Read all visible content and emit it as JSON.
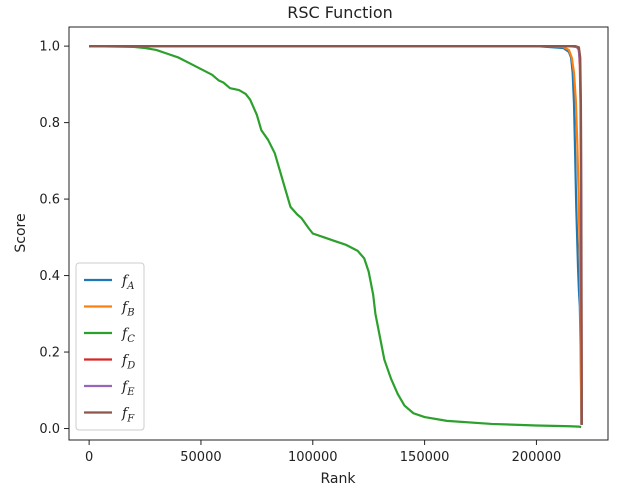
{
  "chart_data": {
    "type": "line",
    "title": "RSC Function",
    "xlabel": "Rank",
    "ylabel": "Score",
    "xlim": [
      -9000,
      232000
    ],
    "ylim": [
      -0.03,
      1.05
    ],
    "xticks": [
      0,
      50000,
      100000,
      150000,
      200000
    ],
    "xtick_labels": [
      "0",
      "50000",
      "100000",
      "150000",
      "200000"
    ],
    "yticks": [
      0.0,
      0.2,
      0.4,
      0.6,
      0.8,
      1.0
    ],
    "ytick_labels": [
      "0.0",
      "0.2",
      "0.4",
      "0.6",
      "0.8",
      "1.0"
    ],
    "grid": false,
    "legend_position": "lower-left",
    "series": [
      {
        "name": "f_A",
        "label_main": "f",
        "label_sub": "A",
        "color": "#1f77b4",
        "x": [
          0,
          200000,
          212000,
          214500,
          215500,
          216200,
          216800,
          217300,
          217800,
          218200,
          218600,
          219000,
          219400,
          219800,
          220100
        ],
        "y": [
          1.0,
          1.0,
          0.995,
          0.985,
          0.97,
          0.93,
          0.85,
          0.72,
          0.58,
          0.5,
          0.42,
          0.36,
          0.32,
          0.2,
          0.01
        ]
      },
      {
        "name": "f_B",
        "label_main": "f",
        "label_sub": "B",
        "color": "#ff7f0e",
        "x": [
          0,
          205000,
          212000,
          214500,
          215800,
          216800,
          217600,
          218300,
          218900,
          219400,
          219800,
          220100
        ],
        "y": [
          1.0,
          1.0,
          0.998,
          0.99,
          0.97,
          0.93,
          0.86,
          0.74,
          0.6,
          0.45,
          0.25,
          0.01
        ]
      },
      {
        "name": "f_C",
        "label_main": "f",
        "label_sub": "C",
        "color": "#2ca02c",
        "x": [
          0,
          20000,
          25000,
          30000,
          35000,
          40000,
          45000,
          50000,
          55000,
          58000,
          60000,
          63000,
          67000,
          70000,
          72000,
          75000,
          77000,
          80000,
          83000,
          85000,
          88000,
          90000,
          93000,
          95000,
          98000,
          100000,
          105000,
          110000,
          115000,
          120000,
          123000,
          125000,
          127000,
          128000,
          130000,
          132000,
          135000,
          138000,
          141000,
          145000,
          150000,
          160000,
          180000,
          200000,
          215000,
          219000,
          220000
        ],
        "y": [
          1.0,
          0.998,
          0.995,
          0.99,
          0.98,
          0.97,
          0.955,
          0.94,
          0.925,
          0.91,
          0.905,
          0.89,
          0.885,
          0.875,
          0.86,
          0.82,
          0.78,
          0.755,
          0.72,
          0.68,
          0.62,
          0.58,
          0.56,
          0.55,
          0.525,
          0.51,
          0.5,
          0.49,
          0.48,
          0.465,
          0.445,
          0.41,
          0.35,
          0.3,
          0.24,
          0.18,
          0.13,
          0.09,
          0.06,
          0.04,
          0.03,
          0.02,
          0.012,
          0.008,
          0.006,
          0.005,
          0.004
        ]
      },
      {
        "name": "f_D",
        "label_main": "f",
        "label_sub": "D",
        "color": "#d62728",
        "x": [
          0,
          215000,
          218000,
          219000,
          219400,
          219700,
          219900,
          220050,
          220150,
          220250
        ],
        "y": [
          1.0,
          1.0,
          0.998,
          0.99,
          0.95,
          0.85,
          0.65,
          0.4,
          0.2,
          0.01
        ]
      },
      {
        "name": "f_E",
        "label_main": "f",
        "label_sub": "E",
        "color": "#9467bd",
        "x": [
          0,
          217000,
          218800,
          219500,
          219900,
          220100,
          220250
        ],
        "y": [
          1.0,
          1.0,
          0.995,
          0.96,
          0.8,
          0.4,
          0.01
        ]
      },
      {
        "name": "f_F",
        "label_main": "f",
        "label_sub": "F",
        "color": "#8c564b",
        "x": [
          0,
          217500,
          219000,
          219600,
          219900,
          220100,
          220200,
          220300
        ],
        "y": [
          1.0,
          1.0,
          0.997,
          0.97,
          0.85,
          0.55,
          0.3,
          0.01
        ]
      }
    ]
  }
}
